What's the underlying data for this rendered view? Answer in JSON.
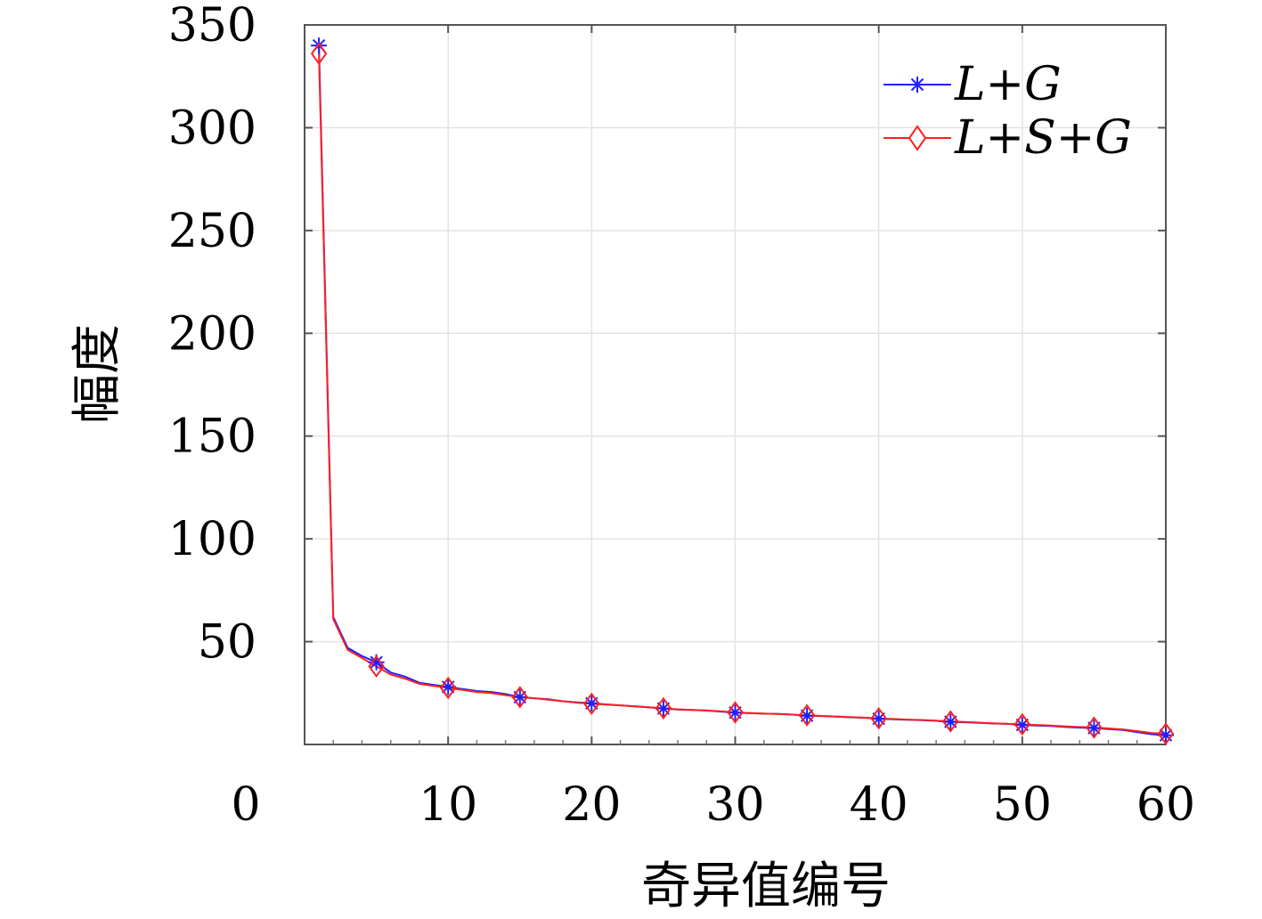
{
  "chart_data": {
    "type": "line",
    "title": "",
    "xlabel": "奇异值编号",
    "ylabel": "幅度",
    "xlim": [
      0,
      60
    ],
    "ylim": [
      0,
      350
    ],
    "x_ticks": [
      "0",
      "10",
      "20",
      "30",
      "40",
      "50",
      "60"
    ],
    "y_ticks": [
      "50",
      "100",
      "150",
      "200",
      "250",
      "300",
      "350"
    ],
    "grid": true,
    "legend_position": "top-right",
    "series": [
      {
        "name": "L+G",
        "color": "#1f1fff",
        "marker": "asterisk",
        "x": [
          1,
          2,
          3,
          4,
          5,
          6,
          7,
          8,
          9,
          10,
          11,
          12,
          13,
          14,
          15,
          16,
          17,
          18,
          19,
          20,
          21,
          22,
          23,
          24,
          25,
          26,
          27,
          28,
          29,
          30,
          31,
          32,
          33,
          34,
          35,
          36,
          37,
          38,
          39,
          40,
          41,
          42,
          43,
          44,
          45,
          46,
          47,
          48,
          49,
          50,
          51,
          52,
          53,
          54,
          55,
          56,
          57,
          58,
          59,
          60
        ],
        "y": [
          340,
          62,
          47,
          43,
          40,
          35,
          33,
          30,
          29,
          28,
          27,
          26,
          25.5,
          24.5,
          23,
          22.5,
          22,
          21,
          20.5,
          20,
          19.5,
          19,
          18.5,
          18,
          17.5,
          17,
          16.8,
          16.5,
          16,
          15.5,
          15.2,
          15,
          14.8,
          14.5,
          14,
          13.8,
          13.5,
          13.2,
          13,
          12.5,
          12.2,
          12,
          11.8,
          11.5,
          11,
          10.8,
          10.5,
          10.2,
          10,
          9.5,
          9.2,
          9,
          8.5,
          8.2,
          8,
          7.5,
          7,
          6,
          5,
          4.5
        ]
      },
      {
        "name": "L+S+G",
        "color": "#ff2020",
        "marker": "diamond",
        "x": [
          1,
          2,
          3,
          4,
          5,
          6,
          7,
          8,
          9,
          10,
          11,
          12,
          13,
          14,
          15,
          16,
          17,
          18,
          19,
          20,
          21,
          22,
          23,
          24,
          25,
          26,
          27,
          28,
          29,
          30,
          31,
          32,
          33,
          34,
          35,
          36,
          37,
          38,
          39,
          40,
          41,
          42,
          43,
          44,
          45,
          46,
          47,
          48,
          49,
          50,
          51,
          52,
          53,
          54,
          55,
          56,
          57,
          58,
          59,
          60
        ],
        "y": [
          336,
          61,
          46,
          42,
          38,
          34,
          32,
          29.5,
          28.5,
          27.5,
          26.5,
          25.5,
          25,
          24,
          23,
          22.5,
          21.8,
          21,
          20.3,
          19.8,
          19.4,
          19,
          18.6,
          18.1,
          17.6,
          17.1,
          16.8,
          16.5,
          16.1,
          15.6,
          15.3,
          15,
          14.8,
          14.5,
          14.2,
          13.9,
          13.6,
          13.3,
          13,
          12.7,
          12.4,
          12.1,
          11.9,
          11.6,
          11.2,
          10.9,
          10.6,
          10.3,
          10,
          9.8,
          9.5,
          9.2,
          8.8,
          8.5,
          8.2,
          7.8,
          7.3,
          6.5,
          5.6,
          5.2
        ]
      }
    ],
    "marker_x": [
      1,
      5,
      10,
      15,
      20,
      25,
      30,
      35,
      40,
      45,
      50,
      55,
      60
    ]
  }
}
